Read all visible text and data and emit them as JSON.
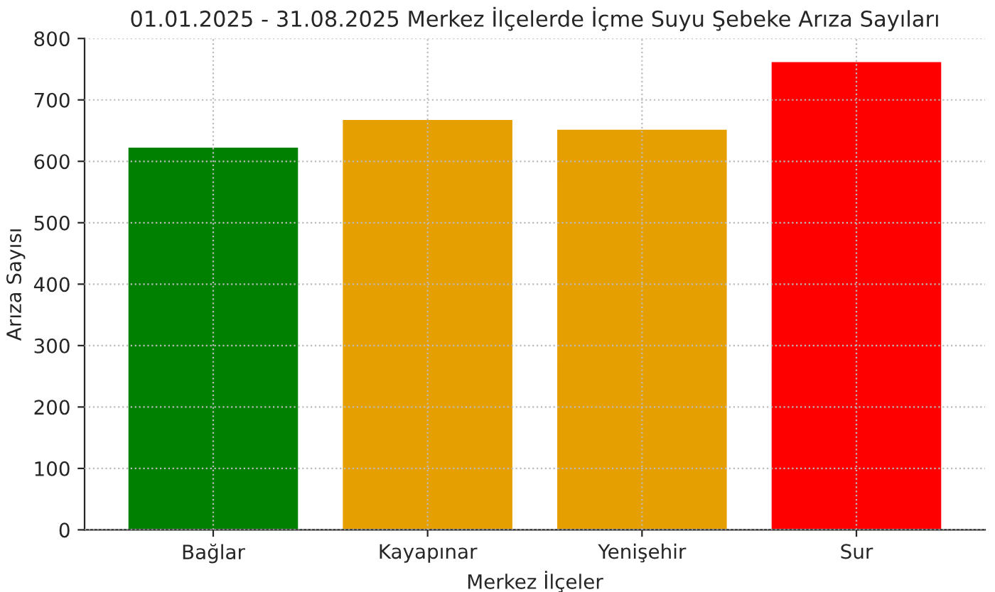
{
  "chart_data": {
    "type": "bar",
    "title": "01.01.2025 - 31.08.2025 Merkez İlçelerde İçme Suyu Şebeke Arıza Sayıları",
    "xlabel": "Merkez İlçeler",
    "ylabel": "Arıza Sayısı",
    "categories": [
      "Bağlar",
      "Kayapınar",
      "Yenişehir",
      "Sur"
    ],
    "values": [
      624,
      669,
      653,
      763
    ],
    "colors": [
      "#008000",
      "#e69f00",
      "#e69f00",
      "#ff0000"
    ],
    "ylim": [
      0,
      800
    ],
    "yticks": [
      0,
      100,
      200,
      300,
      400,
      500,
      600,
      700,
      800
    ],
    "grid": true
  }
}
